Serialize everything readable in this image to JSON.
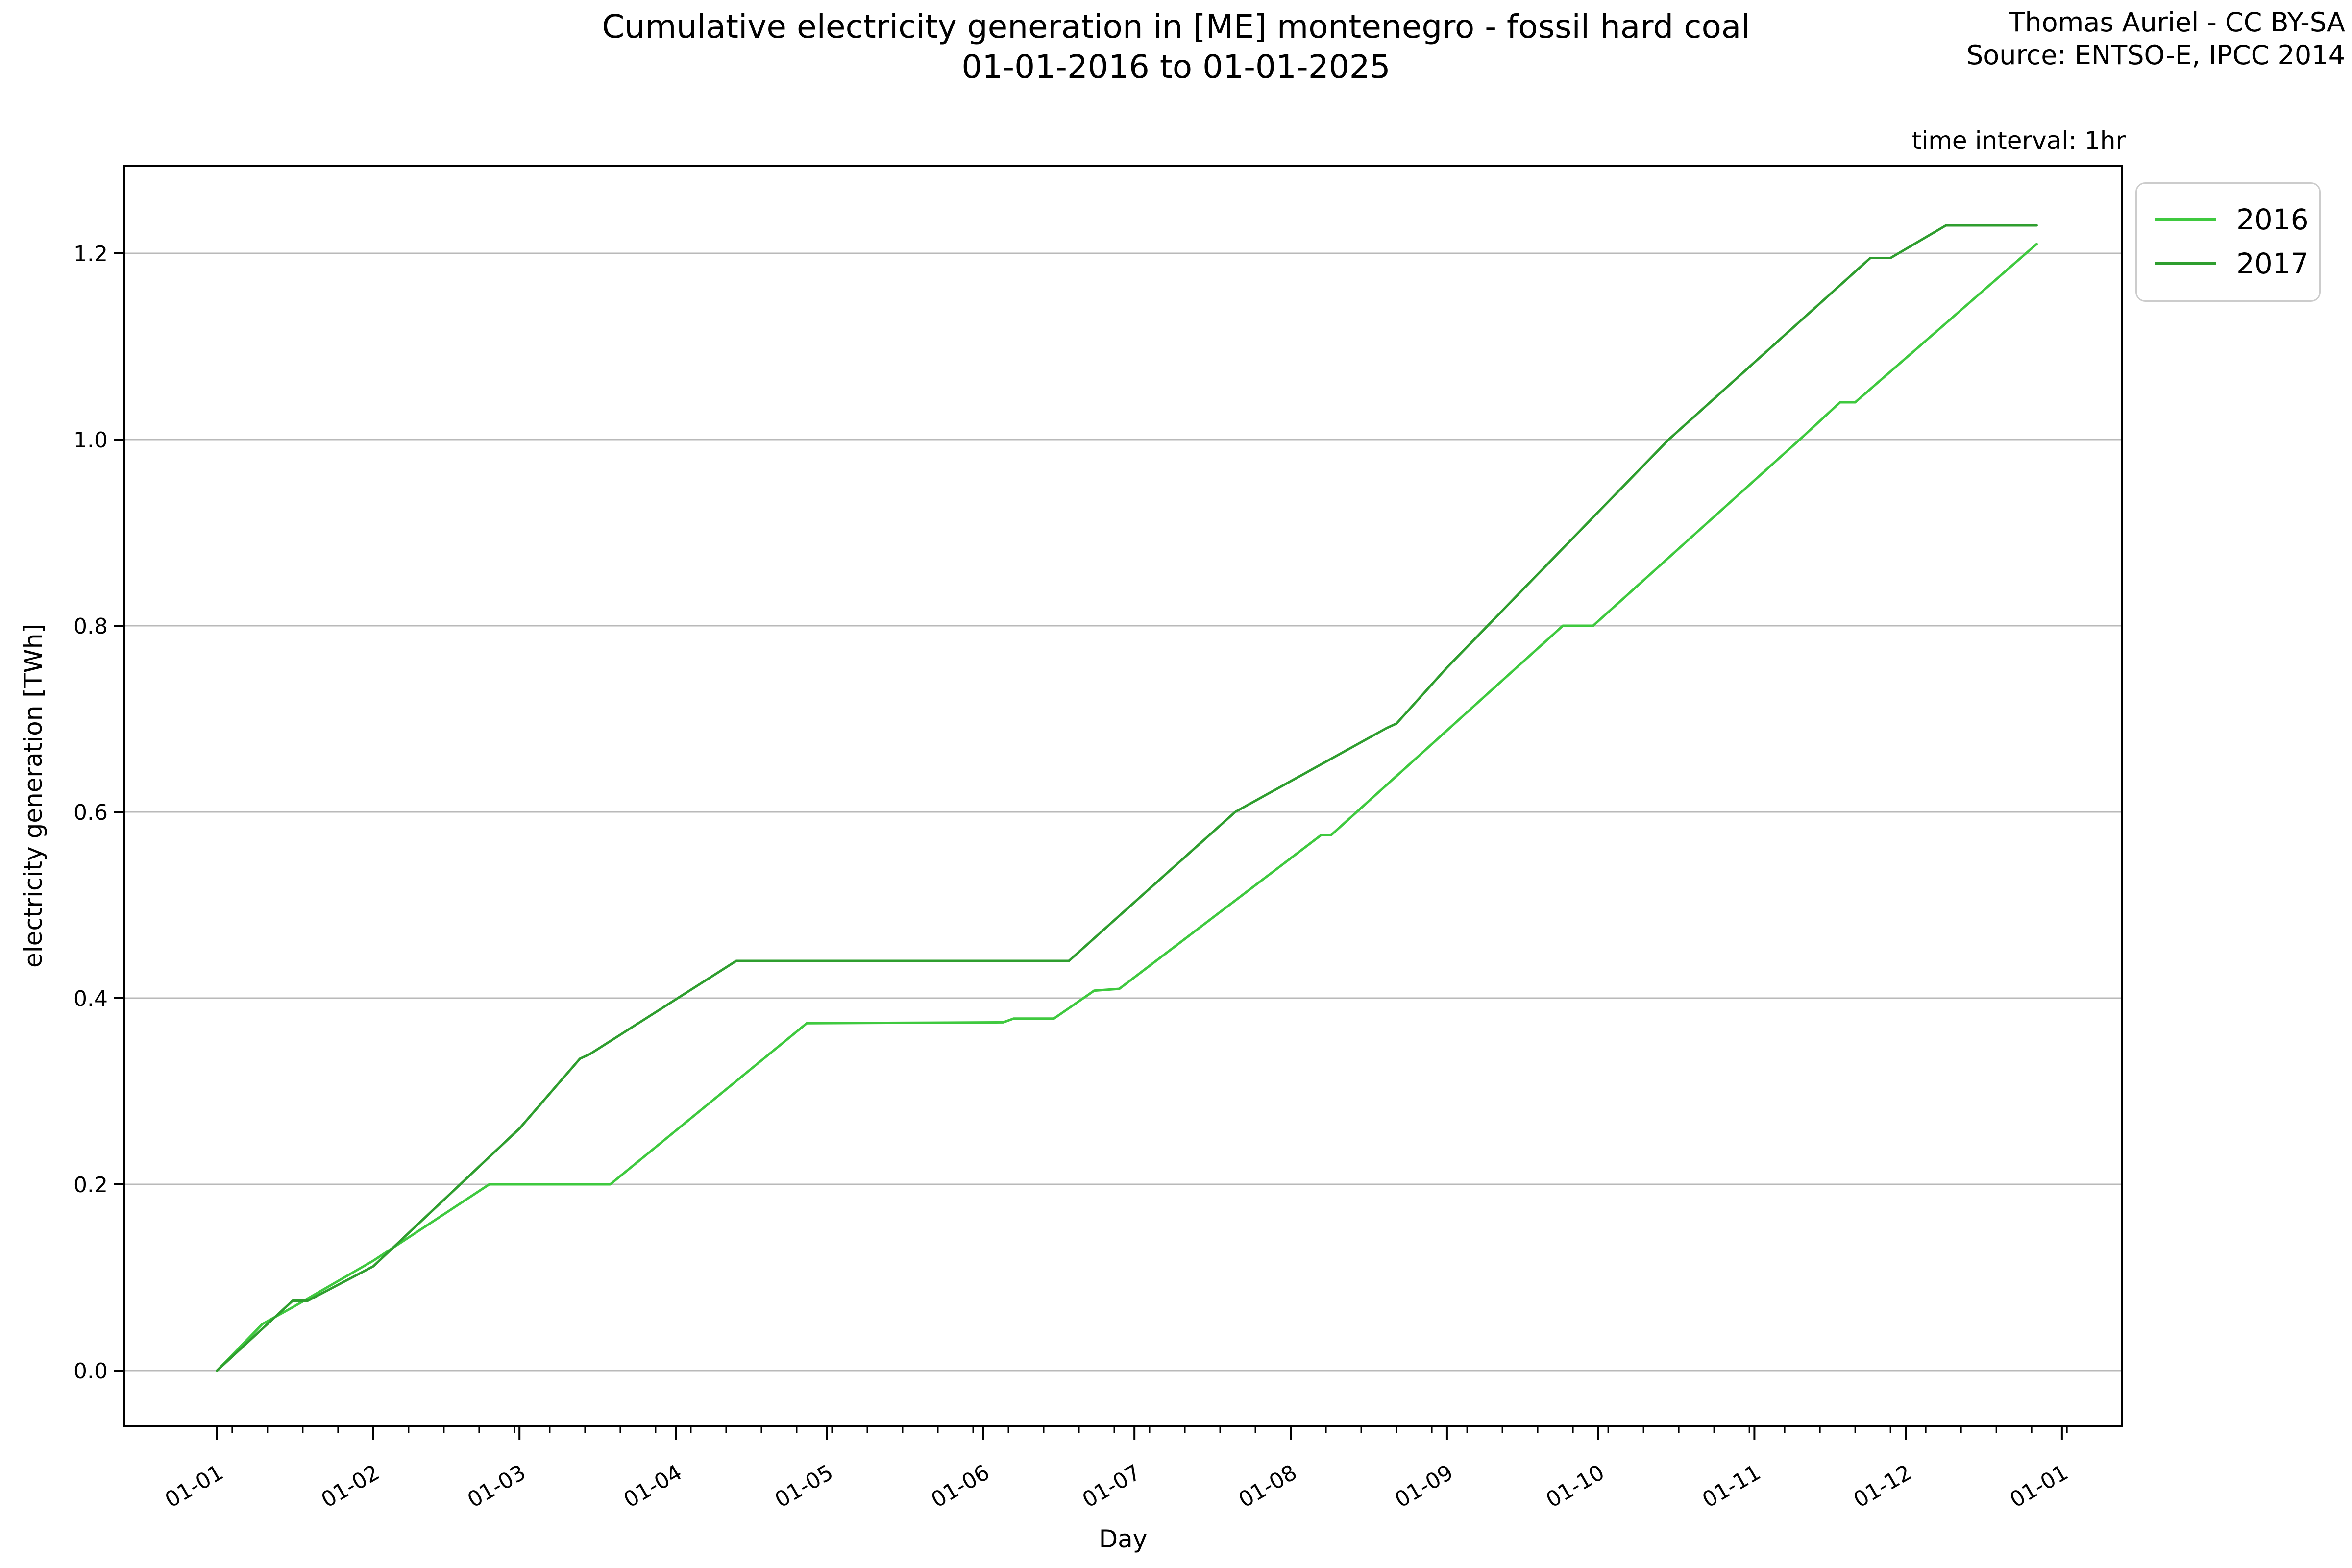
{
  "title": {
    "line1": "Cumulative electricity generation in [ME] montenegro - fossil hard coal",
    "line2": "01-01-2016 to 01-01-2025"
  },
  "attribution": {
    "line1": "Thomas Auriel - CC BY-SA",
    "line2": "Source: ENTSO-E, IPCC 2014"
  },
  "time_interval_note": "time interval: 1hr",
  "legend": {
    "entries": [
      {
        "label": "2016",
        "color": "#3fc93f"
      },
      {
        "label": "2017",
        "color": "#2f9e2f"
      }
    ]
  },
  "chart_data": {
    "type": "line",
    "title": "Cumulative electricity generation in [ME] montenegro - fossil hard coal 01-01-2016 to 01-01-2025",
    "xlabel": "Day",
    "ylabel": "electricity generation [TWh]",
    "x_tick_labels": [
      "01-01",
      "01-02",
      "01-03",
      "01-04",
      "01-05",
      "01-06",
      "01-07",
      "01-08",
      "01-09",
      "01-10",
      "01-11",
      "01-12",
      "01-01"
    ],
    "y_tick_labels": [
      "0.0",
      "0.2",
      "0.4",
      "0.6",
      "0.8",
      "1.0",
      "1.2"
    ],
    "y_ticks": [
      0.0,
      0.2,
      0.4,
      0.6,
      0.8,
      1.0,
      1.2
    ],
    "ylim": [
      -0.06,
      1.29
    ],
    "xlim_days": [
      "2015-12-14",
      "2017-01-14"
    ],
    "grid": "horizontal-major",
    "legend_position": "upper-right-outside",
    "x_minor_tick_interval_days": 7,
    "series": [
      {
        "name": "2016",
        "color": "#3fc93f",
        "points": [
          [
            "01-01",
            0.0
          ],
          [
            "01-10",
            0.05
          ],
          [
            "01-16",
            0.068
          ],
          [
            "02-01",
            0.118
          ],
          [
            "02-24",
            0.2
          ],
          [
            "03-19",
            0.2
          ],
          [
            "04-27",
            0.373
          ],
          [
            "06-05",
            0.374
          ],
          [
            "06-07",
            0.378
          ],
          [
            "06-15",
            0.378
          ],
          [
            "06-23",
            0.408
          ],
          [
            "06-28",
            0.41
          ],
          [
            "08-07",
            0.575
          ],
          [
            "08-09",
            0.575
          ],
          [
            "09-24",
            0.8
          ],
          [
            "09-30",
            0.8
          ],
          [
            "11-10",
            1.0
          ],
          [
            "11-18",
            1.04
          ],
          [
            "11-21",
            1.04
          ],
          [
            "12-27",
            1.21
          ]
        ]
      },
      {
        "name": "2017",
        "color": "#2f9e2f",
        "points": [
          [
            "01-01",
            0.0
          ],
          [
            "01-16",
            0.075
          ],
          [
            "01-19",
            0.075
          ],
          [
            "02-01",
            0.112
          ],
          [
            "03-01",
            0.26
          ],
          [
            "03-13",
            0.335
          ],
          [
            "03-15",
            0.34
          ],
          [
            "04-13",
            0.44
          ],
          [
            "06-18",
            0.44
          ],
          [
            "07-21",
            0.6
          ],
          [
            "08-20",
            0.69
          ],
          [
            "08-22",
            0.695
          ],
          [
            "09-01",
            0.755
          ],
          [
            "10-15",
            1.0
          ],
          [
            "11-24",
            1.195
          ],
          [
            "11-28",
            1.195
          ],
          [
            "12-09",
            1.23
          ],
          [
            "12-27",
            1.23
          ]
        ]
      }
    ]
  }
}
